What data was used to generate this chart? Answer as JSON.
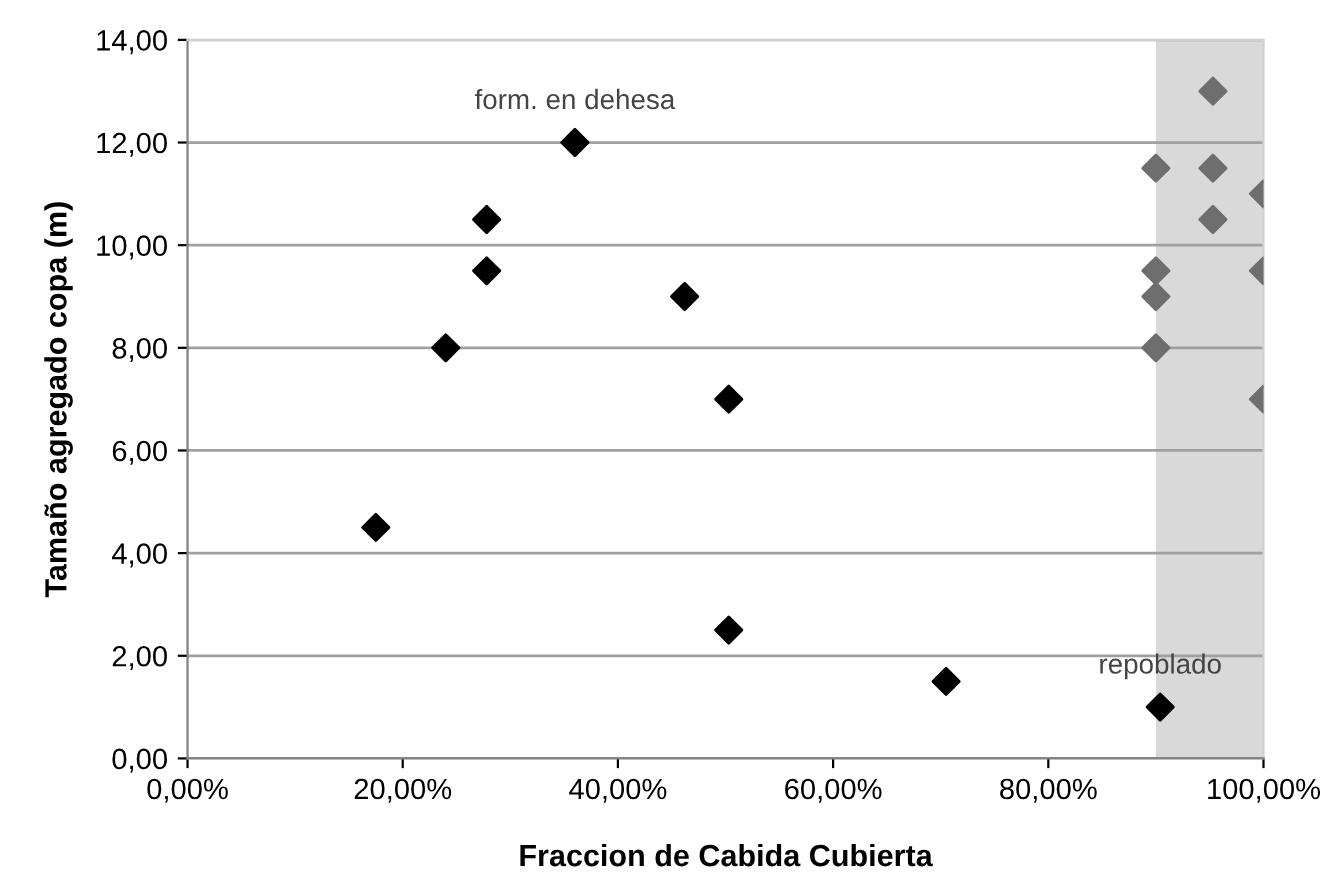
{
  "chart_data": {
    "type": "scatter",
    "xlabel": "Fraccion de Cabida Cubierta",
    "ylabel": "Tamaño agregado copa (m)",
    "series": [
      {
        "color": "#000000",
        "x": [
          17.5,
          24,
          27.8,
          27.8,
          36,
          46.2,
          50.3,
          50.3,
          70.5,
          90.4
        ],
        "values": [
          4.5,
          8,
          10.5,
          9.5,
          12,
          9,
          7,
          2.5,
          1.5,
          1
        ]
      },
      {
        "color": "#6e6e6e",
        "x": [
          90,
          90,
          90,
          90,
          95.3,
          95.3,
          95.3,
          100,
          100,
          100
        ],
        "values": [
          11.5,
          9.5,
          9,
          8,
          13,
          11.5,
          10.5,
          11,
          9.5,
          7
        ]
      }
    ],
    "marker": "diamond",
    "xlim": [
      0,
      100
    ],
    "xticks": [
      {
        "value": 0,
        "label": "0,00%"
      },
      {
        "value": 20,
        "label": "20,00%"
      },
      {
        "value": 40,
        "label": "40,00%"
      },
      {
        "value": 60,
        "label": "60,00%"
      },
      {
        "value": 80,
        "label": "80,00%"
      },
      {
        "value": 100,
        "label": "100,00%"
      }
    ],
    "ylim": [
      0,
      14
    ],
    "yticks": [
      {
        "value": 0,
        "label": "0,00"
      },
      {
        "value": 2,
        "label": "2,00"
      },
      {
        "value": 4,
        "label": "4,00"
      },
      {
        "value": 6,
        "label": "6,00"
      },
      {
        "value": 8,
        "label": "8,00"
      },
      {
        "value": 10,
        "label": "10,00"
      },
      {
        "value": 12,
        "label": "12,00"
      },
      {
        "value": 14,
        "label": "14,00"
      }
    ],
    "grid": "y",
    "bands": [
      {
        "axis": "x",
        "from": 90,
        "to": 100,
        "color": "#d9d9d9"
      }
    ],
    "annotations": [
      {
        "text": "form. en dehesa",
        "x": 36,
        "y": 12
      },
      {
        "text": "repoblado",
        "x": 90.4,
        "y": 1
      }
    ]
  }
}
